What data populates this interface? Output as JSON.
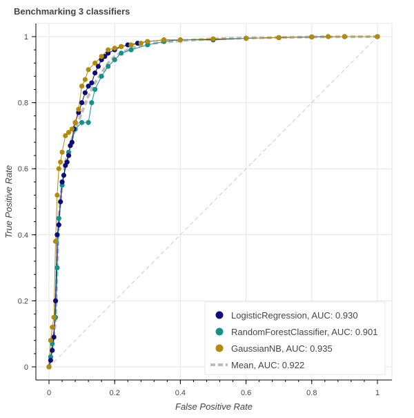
{
  "chart_data": {
    "type": "line",
    "title": "Benchmarking 3 classifiers",
    "xlabel": "False Positive Rate",
    "ylabel": "True Positive Rate",
    "xlim": [
      0,
      1
    ],
    "ylim": [
      0,
      1
    ],
    "x_ticks": [
      "0",
      "0.2",
      "0.4",
      "0.6",
      "0.8",
      "1"
    ],
    "y_ticks": [
      "0",
      "0.2",
      "0.4",
      "0.6",
      "0.8",
      "1"
    ],
    "grid": true,
    "legend_position": "bottom-right",
    "diagonal": {
      "x": [
        0,
        1
      ],
      "y": [
        0,
        1
      ],
      "style": "dashed",
      "color": "#cccccc"
    },
    "series": [
      {
        "name": "LogisticRegression, AUC: 0.930",
        "color": "#0c0c7a",
        "marker": true,
        "x": [
          0,
          0.005,
          0.01,
          0.015,
          0.02,
          0.025,
          0.03,
          0.035,
          0.04,
          0.045,
          0.05,
          0.055,
          0.06,
          0.065,
          0.07,
          0.075,
          0.08,
          0.09,
          0.1,
          0.11,
          0.12,
          0.13,
          0.14,
          0.15,
          0.16,
          0.17,
          0.18,
          0.2,
          0.22,
          0.24,
          0.27,
          0.3,
          0.35,
          0.4,
          0.5,
          0.6,
          0.7,
          0.8,
          0.9,
          1
        ],
        "y": [
          0,
          0.02,
          0.05,
          0.09,
          0.2,
          0.4,
          0.43,
          0.5,
          0.56,
          0.58,
          0.61,
          0.62,
          0.64,
          0.67,
          0.68,
          0.72,
          0.74,
          0.77,
          0.8,
          0.83,
          0.85,
          0.86,
          0.89,
          0.91,
          0.93,
          0.94,
          0.95,
          0.96,
          0.97,
          0.975,
          0.98,
          0.985,
          0.99,
          0.99,
          0.992,
          0.995,
          0.997,
          0.999,
          1,
          1
        ]
      },
      {
        "name": "RandomForestClassifier, AUC: 0.901",
        "color": "#12918a",
        "marker": true,
        "x": [
          0,
          0.005,
          0.01,
          0.02,
          0.025,
          0.03,
          0.04,
          0.06,
          0.08,
          0.1,
          0.12,
          0.13,
          0.14,
          0.16,
          0.18,
          0.2,
          0.22,
          0.25,
          0.3,
          0.35,
          0.4,
          0.5,
          0.6,
          0.7,
          0.8,
          0.85,
          0.9,
          1
        ],
        "y": [
          0,
          0.03,
          0.07,
          0.15,
          0.3,
          0.45,
          0.55,
          0.65,
          0.72,
          0.74,
          0.74,
          0.8,
          0.84,
          0.88,
          0.91,
          0.93,
          0.95,
          0.96,
          0.975,
          0.985,
          0.99,
          0.99,
          0.995,
          0.997,
          0.999,
          1,
          1,
          1
        ]
      },
      {
        "name": "GaussianNB, AUC: 0.935",
        "color": "#b38a0b",
        "marker": true,
        "x": [
          0,
          0.005,
          0.01,
          0.015,
          0.02,
          0.025,
          0.03,
          0.035,
          0.04,
          0.05,
          0.06,
          0.07,
          0.08,
          0.09,
          0.1,
          0.11,
          0.12,
          0.14,
          0.16,
          0.18,
          0.2,
          0.22,
          0.25,
          0.28,
          0.3,
          0.35,
          0.4,
          0.5,
          0.6,
          0.7,
          0.8,
          0.85,
          0.9,
          1
        ],
        "y": [
          0,
          0.08,
          0.12,
          0.15,
          0.38,
          0.52,
          0.6,
          0.62,
          0.65,
          0.7,
          0.71,
          0.72,
          0.74,
          0.78,
          0.85,
          0.87,
          0.9,
          0.92,
          0.94,
          0.96,
          0.965,
          0.97,
          0.975,
          0.98,
          0.985,
          0.99,
          0.99,
          0.993,
          0.995,
          0.997,
          0.999,
          1,
          1,
          1
        ]
      },
      {
        "name": "Mean, AUC: 0.922",
        "color": "#bdbdbd",
        "marker": false,
        "style": "thick-dashed",
        "x": [
          0,
          0.01,
          0.02,
          0.025,
          0.03,
          0.04,
          0.05,
          0.06,
          0.08,
          0.1,
          0.12,
          0.14,
          0.16,
          0.18,
          0.2,
          0.25,
          0.3,
          0.4,
          0.5,
          0.6,
          0.8,
          1
        ],
        "y": [
          0,
          0.06,
          0.14,
          0.3,
          0.46,
          0.55,
          0.62,
          0.66,
          0.72,
          0.77,
          0.82,
          0.86,
          0.89,
          0.92,
          0.94,
          0.965,
          0.978,
          0.988,
          0.993,
          0.996,
          0.999,
          1
        ]
      }
    ]
  }
}
